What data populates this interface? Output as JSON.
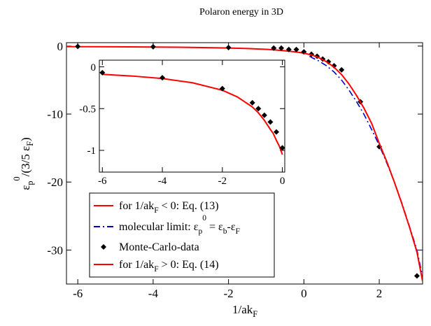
{
  "chart_data": [
    {
      "type": "line",
      "title": "Polaron energy in 3D",
      "xlabel": "1/akF",
      "ylabel": "εp0/(3/5 εF)",
      "xlim": [
        -6.3,
        3.15
      ],
      "ylim": [
        -35,
        0.5
      ],
      "x_ticks": [
        -6,
        -4,
        -2,
        0,
        2
      ],
      "x_tick_labels": [
        "-6",
        "-4",
        "-2",
        "0",
        "2"
      ],
      "y_ticks": [
        0,
        -10,
        -20,
        -30
      ],
      "y_tick_labels": [
        "0",
        "-10",
        "-20",
        "-30"
      ],
      "grid": false,
      "legend_placement": "lower-left",
      "series": [
        {
          "name": "for 1/akF < 0: Eq. (13)",
          "color": "#ff0000",
          "style": "solid",
          "x": [
            -6.3,
            -6,
            -5,
            -4,
            -3,
            -2,
            -1.5,
            -1,
            -0.8,
            -0.6,
            -0.4,
            -0.2,
            -0.1,
            0
          ],
          "y": [
            -0.08,
            -0.09,
            -0.11,
            -0.14,
            -0.19,
            -0.28,
            -0.36,
            -0.48,
            -0.55,
            -0.64,
            -0.75,
            -0.88,
            -0.95,
            -1.05
          ]
        },
        {
          "name": "molecular limit: εp0 = εb-εF",
          "color": "#0000cc",
          "style": "dashed",
          "x": [
            0.15,
            0.25,
            0.4,
            0.6,
            0.8,
            1.0,
            1.2,
            1.4,
            1.6,
            1.8,
            2.0,
            2.2,
            2.4,
            2.6,
            2.8,
            3.0,
            3.15
          ],
          "y": [
            -1.5,
            -1.8,
            -2.2,
            -2.9,
            -3.8,
            -5.0,
            -6.5,
            -8.2,
            -10.1,
            -12.3,
            -14.6,
            -17.2,
            -20.0,
            -23.1,
            -26.5,
            -30.0,
            -34.0
          ]
        },
        {
          "name": "Monte-Carlo-data",
          "color": "#000000",
          "style": "markers",
          "marker": "diamond",
          "x": [
            -6,
            -4,
            -2,
            -0.8,
            -0.6,
            -0.4,
            -0.2,
            0,
            0.2,
            0.35,
            0.5,
            0.65,
            0.8,
            1.0,
            1.5,
            2.0,
            3.0
          ],
          "y": [
            -0.05,
            -0.1,
            -0.22,
            -0.3,
            -0.3,
            -0.5,
            -0.5,
            -0.85,
            -1.2,
            -1.5,
            -1.9,
            -2.3,
            -2.9,
            -3.5,
            -8.2,
            -14.8,
            -33.8
          ]
        },
        {
          "name": "for 1/akF > 0: Eq. (14)",
          "color": "#ff0000",
          "style": "solid",
          "x": [
            0,
            0.2,
            0.4,
            0.6,
            0.8,
            1.0,
            1.2,
            1.4,
            1.6,
            1.8,
            2.0,
            2.2,
            2.4,
            2.6,
            2.8,
            3.0,
            3.15
          ],
          "y": [
            -1.05,
            -1.3,
            -1.7,
            -2.3,
            -3.1,
            -4.2,
            -5.6,
            -7.3,
            -9.2,
            -11.4,
            -14.3,
            -17.0,
            -20.0,
            -23.2,
            -26.6,
            -30.3,
            -34.6
          ]
        }
      ]
    },
    {
      "type": "line",
      "title": "",
      "xlim": [
        -6.1,
        0.08
      ],
      "ylim": [
        -1.26,
        0.08
      ],
      "x_ticks": [
        -6,
        -4,
        -2,
        0
      ],
      "x_tick_labels": [
        "-6",
        "-4",
        "-2",
        "0"
      ],
      "y_ticks": [
        0,
        -0.5,
        -1
      ],
      "y_tick_labels": [
        "0",
        "-0.5",
        "-1"
      ],
      "grid": false,
      "series": [
        {
          "color": "#ff0000",
          "style": "solid",
          "x": [
            -6,
            -5,
            -4,
            -3,
            -2,
            -1.5,
            -1,
            -0.8,
            -0.6,
            -0.4,
            -0.3,
            -0.2,
            -0.1,
            -0.05,
            0
          ],
          "y": [
            -0.09,
            -0.11,
            -0.14,
            -0.19,
            -0.28,
            -0.36,
            -0.48,
            -0.55,
            -0.64,
            -0.75,
            -0.8,
            -0.88,
            -0.95,
            -1.0,
            -1.05
          ]
        },
        {
          "color": "#000000",
          "style": "markers",
          "marker": "diamond",
          "x": [
            -6,
            -4,
            -2,
            -1,
            -0.8,
            -0.6,
            -0.4,
            -0.2,
            0
          ],
          "y": [
            -0.07,
            -0.13,
            -0.26,
            -0.43,
            -0.5,
            -0.58,
            -0.66,
            -0.78,
            -0.97
          ]
        }
      ]
    }
  ]
}
